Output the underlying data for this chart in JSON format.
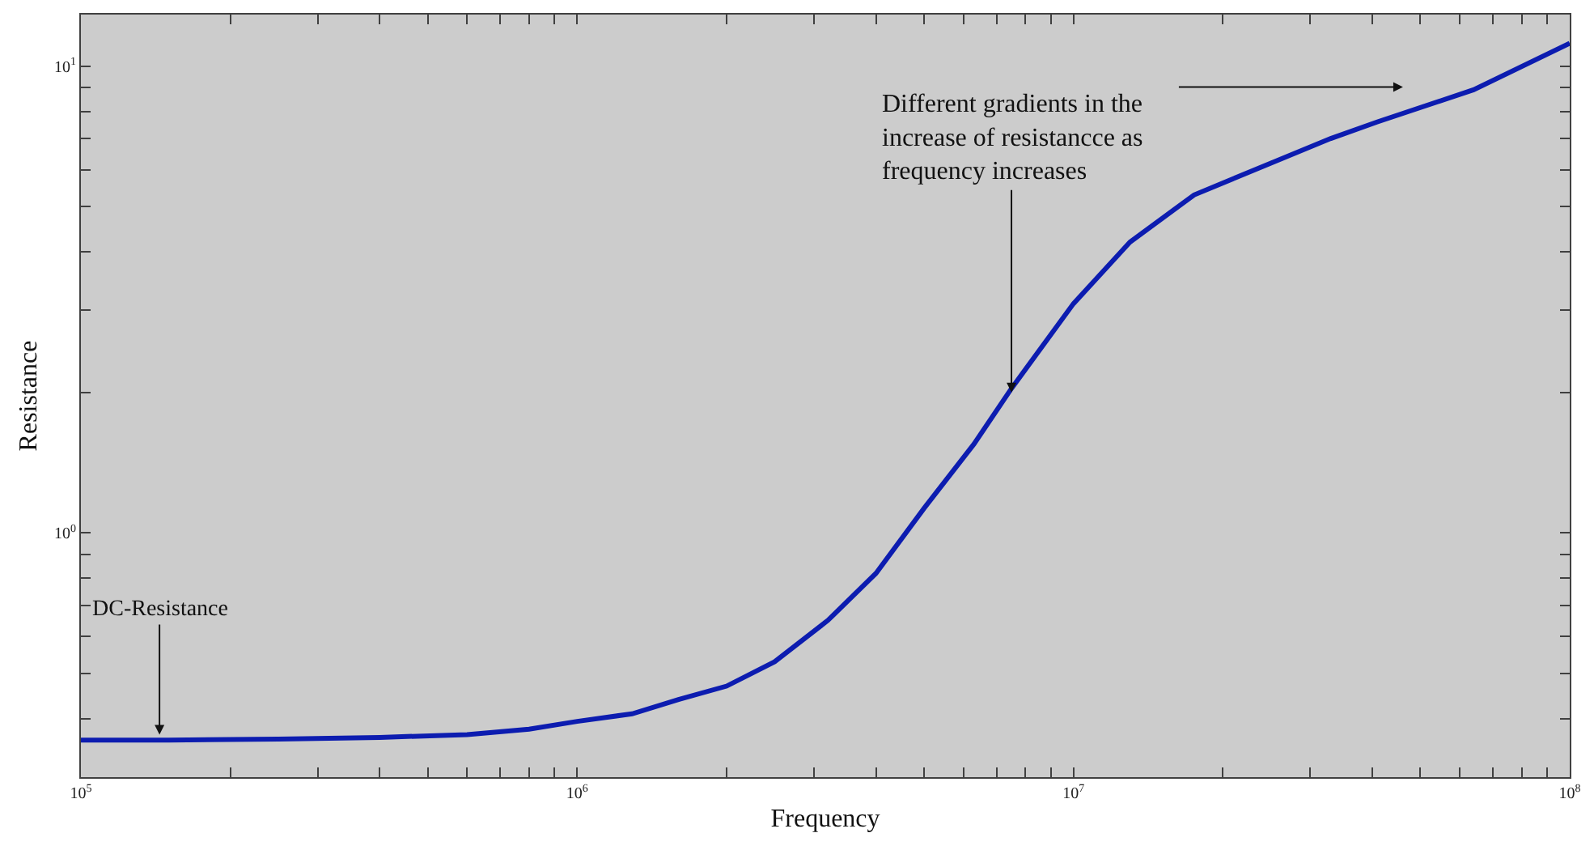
{
  "chart_data": {
    "type": "line",
    "xlabel": "Frequency",
    "ylabel": "Resistance",
    "log": "xy",
    "grid": false,
    "marker": "none",
    "line_style": "solid",
    "x": [
      100000,
      150000,
      250000,
      400000,
      600000,
      800000,
      1000000,
      1290000,
      1600000,
      2000000,
      2500000,
      3200000,
      4000000,
      5000000,
      6300000,
      7500000,
      10000000,
      13000000,
      17500000,
      25000000,
      33000000,
      41000000,
      64000000,
      100000000
    ],
    "series": [
      {
        "color": "#0c1cb0",
        "values": [
          0.36,
          0.36,
          0.362,
          0.365,
          0.37,
          0.38,
          0.395,
          0.41,
          0.44,
          0.47,
          0.53,
          0.65,
          0.82,
          1.13,
          1.55,
          2.04,
          3.1,
          4.2,
          5.3,
          6.2,
          7.0,
          7.6,
          8.9,
          11.2
        ]
      }
    ],
    "xlim": [
      100000,
      100000000
    ],
    "ylim": [
      0.3,
      12.9
    ],
    "xticks": [
      {
        "value": 100000,
        "label": "10$^{5}$"
      },
      {
        "value": 200000,
        "label": null
      },
      {
        "value": 300000,
        "label": null
      },
      {
        "value": 400000,
        "label": null
      },
      {
        "value": 500000,
        "label": null
      },
      {
        "value": 600000,
        "label": null
      },
      {
        "value": 700000,
        "label": null
      },
      {
        "value": 800000,
        "label": null
      },
      {
        "value": 900000,
        "label": null
      },
      {
        "value": 1000000,
        "label": "10$^{6}$"
      },
      {
        "value": 2000000,
        "label": null
      },
      {
        "value": 3000000,
        "label": null
      },
      {
        "value": 4000000,
        "label": null
      },
      {
        "value": 5000000,
        "label": null
      },
      {
        "value": 6000000,
        "label": null
      },
      {
        "value": 7000000,
        "label": null
      },
      {
        "value": 8000000,
        "label": null
      },
      {
        "value": 9000000,
        "label": null
      },
      {
        "value": 10000000,
        "label": "10$^{7}$"
      },
      {
        "value": 20000000,
        "label": null
      },
      {
        "value": 30000000,
        "label": null
      },
      {
        "value": 40000000,
        "label": null
      },
      {
        "value": 50000000,
        "label": null
      },
      {
        "value": 60000000,
        "label": null
      },
      {
        "value": 70000000,
        "label": null
      },
      {
        "value": 80000000,
        "label": null
      },
      {
        "value": 90000000,
        "label": null
      },
      {
        "value": 100000000,
        "label": "10$^{8}$"
      }
    ],
    "yticks": [
      {
        "value": 0.4,
        "label": null
      },
      {
        "value": 0.5,
        "label": null
      },
      {
        "value": 0.6,
        "label": null
      },
      {
        "value": 0.7,
        "label": null
      },
      {
        "value": 0.8,
        "label": null
      },
      {
        "value": 0.9,
        "label": null
      },
      {
        "value": 1,
        "label": "10$^{0}$"
      },
      {
        "value": 2,
        "label": null
      },
      {
        "value": 3,
        "label": null
      },
      {
        "value": 4,
        "label": null
      },
      {
        "value": 5,
        "label": null
      },
      {
        "value": 6,
        "label": null
      },
      {
        "value": 7,
        "label": null
      },
      {
        "value": 8,
        "label": null
      },
      {
        "value": 9,
        "label": null
      },
      {
        "value": 10,
        "label": "10$^{1}$"
      }
    ],
    "annotations": [
      {
        "text": "DC-Resistance",
        "x": 144000,
        "y": 0.37
      },
      {
        "text": "Different gradients in the\nincrease of resistancce as\nfrequency increases",
        "x": 7500000,
        "y": 2.0
      }
    ]
  }
}
